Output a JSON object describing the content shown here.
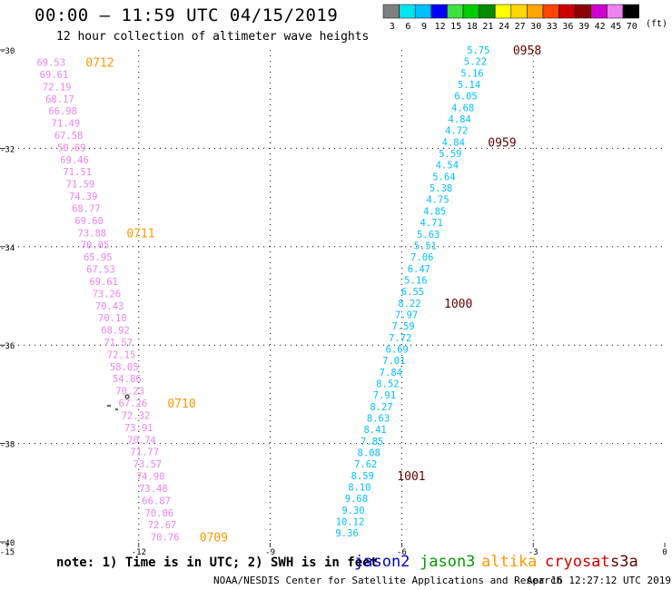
{
  "header": {
    "title": "00:00 – 11:59 UTC 04/15/2019",
    "subtitle": "12 hour collection of altimeter wave heights"
  },
  "color_scale": {
    "labels": [
      "3",
      "6",
      "9",
      "12",
      "15",
      "18",
      "21",
      "24",
      "27",
      "30",
      "33",
      "36",
      "39",
      "42",
      "45",
      "70"
    ],
    "unit": "(ft)",
    "colors": [
      "#808080",
      "#00e5ee",
      "#00bfff",
      "#0000ff",
      "#40e040",
      "#00cd00",
      "#008b00",
      "#ffff00",
      "#ffd700",
      "#ffa500",
      "#ff4500",
      "#cd0000",
      "#8b0000",
      "#cd00cd",
      "#ee82ee",
      "#000000"
    ]
  },
  "footer": {
    "note": "note: 1) Time is in UTC; 2) SWH is in feet",
    "credit": "NOAA/NESDIS Center for Satellite Applications and Research",
    "generated": "Apr 16 12:27:12 UTC 2019"
  },
  "legend": [
    {
      "name": "jason2",
      "color": "#0000cd"
    },
    {
      "name": "jason3",
      "color": "#009a00"
    },
    {
      "name": "altika",
      "color": "#ff9900"
    },
    {
      "name": "cryosat",
      "color": "#cc0000"
    },
    {
      "name": "s3a",
      "color": "#660000"
    }
  ],
  "chart_data": {
    "type": "scatter",
    "title": "12 hour collection of altimeter wave heights",
    "xlim": [
      -15,
      0
    ],
    "ylim": [
      -40,
      -30
    ],
    "x_ticks": [
      "-15",
      "-12",
      "-9",
      "-6",
      "-3",
      "0"
    ],
    "y_ticks": [
      "-30",
      "-32",
      "-34",
      "-36",
      "-38",
      "-40"
    ],
    "grid": true,
    "series": [
      {
        "name": "altika",
        "color": "#ee82ee",
        "label_color": "#ff9900",
        "start": [
          -14.0,
          -30.25
        ],
        "end": [
          -11.4,
          -39.9
        ],
        "values": [
          "69.53",
          "69.61",
          "72.19",
          "68.17",
          "66.98",
          "71.49",
          "67.58",
          "50.69",
          "69.46",
          "71.51",
          "71.59",
          "74.39",
          "68.77",
          "69.60",
          "73.88",
          "70.05",
          "65.95",
          "67.53",
          "69.61",
          "73.26",
          "70.43",
          "70.10",
          "68.92",
          "71.57",
          "72.15",
          "58.05",
          "54.86",
          "70.23",
          "67.26",
          "72.32",
          "73.91",
          "70.74",
          "71.77",
          "73.57",
          "74.90",
          "73.48",
          "66.87",
          "70.06",
          "72.67",
          "70.76"
        ],
        "time_labels": [
          {
            "text": "0712",
            "index": 0
          },
          {
            "text": "0711",
            "index": 14
          },
          {
            "text": "0710",
            "index": 28
          },
          {
            "text": "0709",
            "index": 39
          }
        ]
      },
      {
        "name": "s3a",
        "color": "#00bfff",
        "label_color": "#660000",
        "start": [
          -4.25,
          -30.0
        ],
        "end": [
          -7.25,
          -39.82
        ],
        "values": [
          "5.75",
          "5.22",
          "5.16",
          "5.14",
          "6.05",
          "4.68",
          "4.84",
          "4.72",
          "4.84",
          "5.59",
          "4.54",
          "5.64",
          "5.38",
          "4.75",
          "4.85",
          "4.71",
          "5.63",
          "5.51",
          "7.06",
          "6.47",
          "5.16",
          "6.55",
          "8.22",
          "7.97",
          "7.59",
          "7.72",
          "6.69",
          "7.01",
          "7.84",
          "8.52",
          "7.91",
          "8.27",
          "8.63",
          "8.41",
          "7.85",
          "8.08",
          "7.62",
          "8.59",
          "8.10",
          "9.68",
          "9.30",
          "10.12",
          "9.36"
        ],
        "time_labels": [
          {
            "text": "0958",
            "index": 0
          },
          {
            "text": "0959",
            "index": 8
          },
          {
            "text": "1000",
            "index": 22
          },
          {
            "text": "1001",
            "index": 37
          }
        ]
      }
    ]
  }
}
